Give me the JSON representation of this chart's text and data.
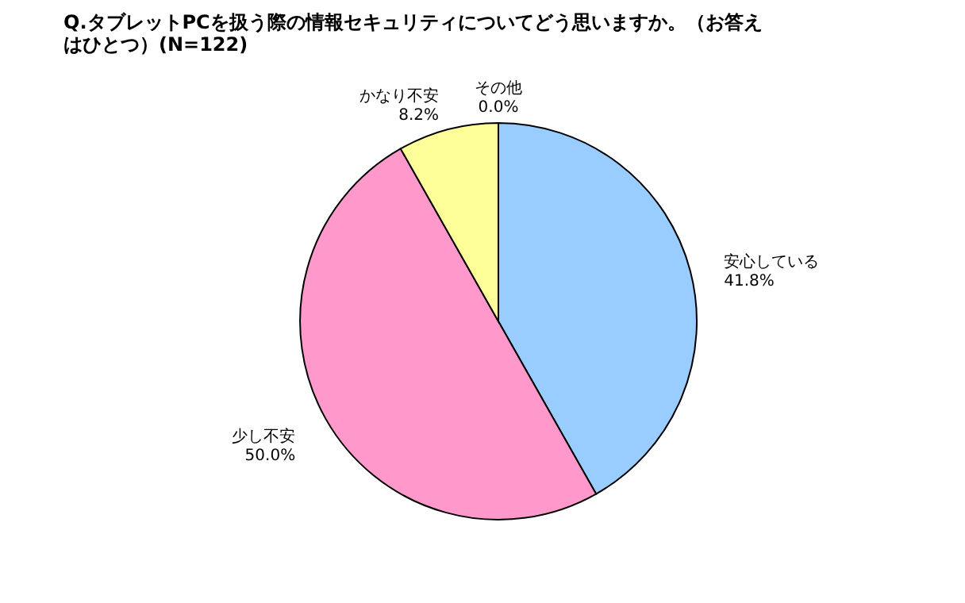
{
  "chart_data": {
    "type": "pie",
    "title": "Q.タブレットPCを扱う際の情報セキュリティについてどう思いますか。（お答えはひとつ）(N=122)",
    "categories": [
      "安心している",
      "少し不安",
      "かなり不安",
      "その他"
    ],
    "values": [
      41.8,
      50.0,
      8.2,
      0.0
    ],
    "value_labels": [
      "41.8%",
      "50.0%",
      "8.2%",
      "0.0%"
    ],
    "colors": [
      "#99ccff",
      "#ff99cc",
      "#ffff99",
      "#ccffcc"
    ],
    "legend": false
  }
}
